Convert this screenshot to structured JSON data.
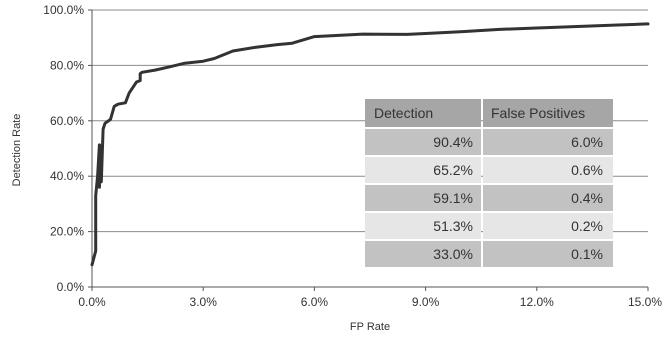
{
  "chart_data": {
    "type": "line",
    "xlabel": "FP Rate",
    "ylabel": "Detection Rate",
    "xlim": [
      0,
      15
    ],
    "ylim": [
      0,
      100
    ],
    "x_ticks": [
      "0.0%",
      "3.0%",
      "6.0%",
      "9.0%",
      "12.0%",
      "15.0%"
    ],
    "y_ticks": [
      "0.0%",
      "20.0%",
      "40.0%",
      "60.0%",
      "80.0%",
      "100.0%"
    ],
    "grid": "horizontal",
    "series": [
      {
        "color": "#333333",
        "x": [
          0.0,
          0.1,
          0.1,
          0.15,
          0.2,
          0.2,
          0.25,
          0.25,
          0.3,
          0.35,
          0.5,
          0.6,
          0.7,
          0.9,
          1.0,
          1.1,
          1.2,
          1.3,
          1.3,
          1.35,
          1.7,
          2.1,
          2.5,
          3.0,
          3.3,
          3.8,
          4.4,
          5.0,
          5.4,
          6.0,
          7.3,
          8.5,
          9.0,
          10.0,
          11.0,
          12.0,
          13.0,
          14.0,
          15.0
        ],
        "y": [
          8.0,
          13.0,
          33.0,
          40.0,
          51.3,
          36.0,
          51.0,
          38.0,
          57.0,
          59.1,
          60.5,
          65.2,
          66.0,
          66.5,
          70.0,
          72.0,
          74.0,
          74.5,
          77.0,
          77.5,
          78.3,
          79.5,
          80.8,
          81.5,
          82.5,
          85.2,
          86.5,
          87.5,
          88.0,
          90.4,
          91.3,
          91.2,
          91.5,
          92.2,
          93.0,
          93.5,
          94.0,
          94.5,
          95.0
        ]
      }
    ],
    "table": {
      "headers": [
        "Detection",
        "False Positives"
      ],
      "rows": [
        [
          "90.4%",
          "6.0%"
        ],
        [
          "65.2%",
          "0.6%"
        ],
        [
          "59.1%",
          "0.4%"
        ],
        [
          "51.3%",
          "0.2%"
        ],
        [
          "33.0%",
          "0.1%"
        ]
      ]
    },
    "colors": {
      "line": "#333333",
      "header_bg": "#a6a6a6",
      "row_dark": "#c2c2c2",
      "row_light": "#e6e6e6"
    }
  }
}
